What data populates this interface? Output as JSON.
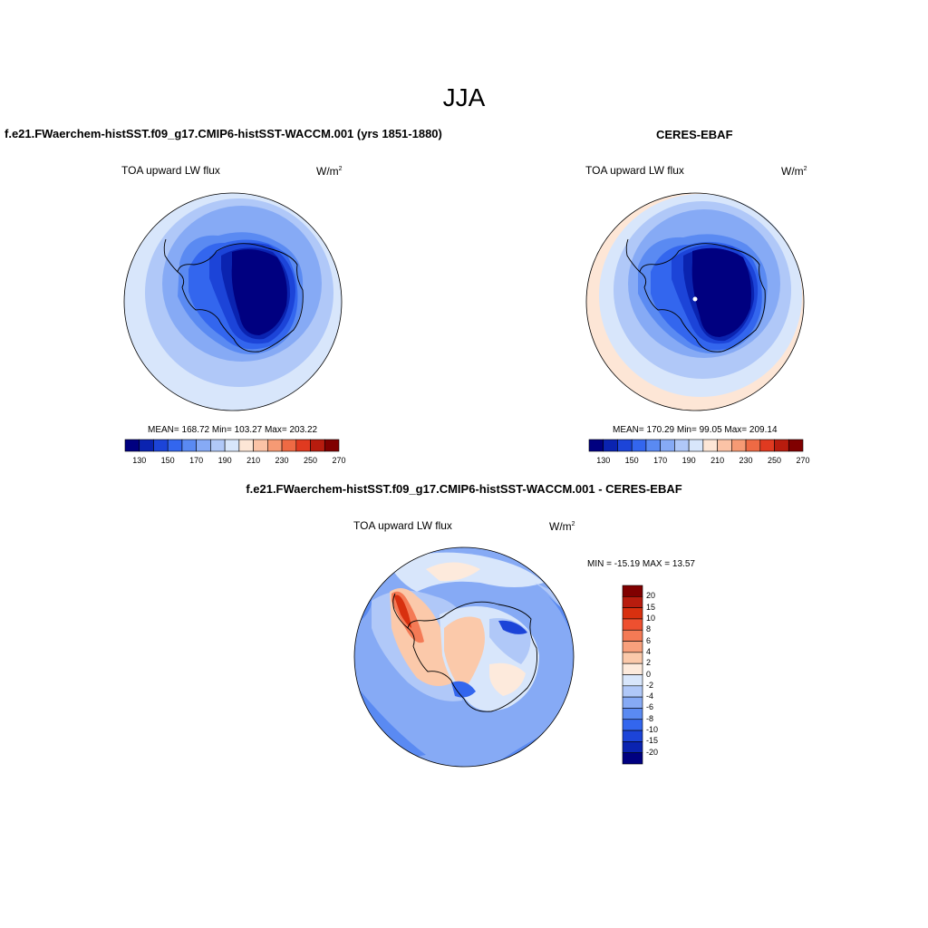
{
  "figure": {
    "season": "JJA",
    "panels": [
      {
        "title": "f.e21.FWaerchem-histSST.f09_g17.CMIP6-histSST-WACCM.001 (yrs 1851-1880)",
        "variable": "TOA upward LW flux",
        "units": "W/m",
        "units_exp": "2",
        "stats": "MEAN= 168.72  Min= 103.27  Max= 203.22",
        "colorbar_ticks": [
          "130",
          "150",
          "170",
          "190",
          "210",
          "230",
          "250",
          "270"
        ]
      },
      {
        "title": "CERES-EBAF",
        "variable": "TOA upward LW flux",
        "units": "W/m",
        "units_exp": "2",
        "stats": "MEAN= 170.29  Min=  99.05  Max= 209.14",
        "colorbar_ticks": [
          "130",
          "150",
          "170",
          "190",
          "210",
          "230",
          "250",
          "270"
        ]
      },
      {
        "title": "f.e21.FWaerchem-histSST.f09_g17.CMIP6-histSST-WACCM.001 - CERES-EBAF",
        "variable": "TOA upward LW flux",
        "units": "W/m",
        "units_exp": "2",
        "stats": "MIN = -15.19 MAX =  13.57",
        "colorbar_ticks": [
          "20",
          "15",
          "10",
          "8",
          "6",
          "4",
          "2",
          "0",
          "-2",
          "-4",
          "-6",
          "-8",
          "-10",
          "-15",
          "-20"
        ]
      }
    ]
  },
  "colors": {
    "abs_scale": [
      "#000080",
      "#0a23b0",
      "#1c44d8",
      "#3366ee",
      "#5a8af2",
      "#86aaf5",
      "#b0c8f8",
      "#d8e6fb",
      "#fde6d6",
      "#fbc3a6",
      "#f69a74",
      "#ee6a44",
      "#e03a20",
      "#b81c0e",
      "#800000"
    ],
    "diff_scale": [
      "#800000",
      "#b81c0e",
      "#d8300f",
      "#ee5030",
      "#f47a55",
      "#f8a07c",
      "#fbc9aa",
      "#fdeadc",
      "#d8e6fb",
      "#b0c8f8",
      "#86aaf5",
      "#5a8af2",
      "#3366ee",
      "#1c44d8",
      "#0a23b0",
      "#000080"
    ]
  }
}
